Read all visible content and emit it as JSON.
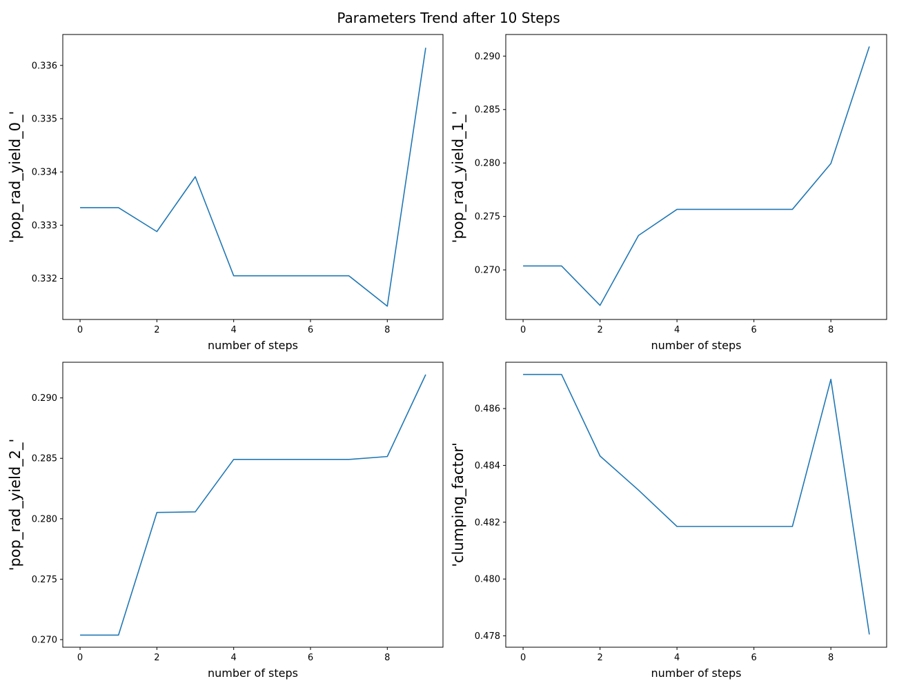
{
  "figure": {
    "title": "Parameters Trend after 10 Steps"
  },
  "chart_data": [
    {
      "type": "line",
      "title": "",
      "xlabel": "number of steps",
      "ylabel": "'pop_rad_yield_0_'",
      "x": [
        0,
        1,
        2,
        3,
        4,
        5,
        6,
        7,
        8,
        9
      ],
      "xticks": [
        0,
        2,
        4,
        6,
        8
      ],
      "xlim": [
        -0.45,
        9.45
      ],
      "yticks": [
        0.332,
        0.333,
        0.334,
        0.335,
        0.336
      ],
      "ylim": [
        0.33123,
        0.33658
      ],
      "ytick_decimals": 3,
      "series": [
        {
          "color": "#1f77b4",
          "values": [
            0.33333,
            0.33333,
            0.33288,
            0.33391,
            0.33205,
            0.33205,
            0.33205,
            0.33205,
            0.33148,
            0.33633
          ]
        }
      ]
    },
    {
      "type": "line",
      "title": "",
      "xlabel": "number of steps",
      "ylabel": "'pop_rad_yield_1_'",
      "x": [
        0,
        1,
        2,
        3,
        4,
        5,
        6,
        7,
        8,
        9
      ],
      "xticks": [
        0,
        2,
        4,
        6,
        8
      ],
      "xlim": [
        -0.45,
        9.45
      ],
      "yticks": [
        0.27,
        0.275,
        0.28,
        0.285,
        0.29
      ],
      "ylim": [
        0.26536,
        0.29202
      ],
      "ytick_decimals": 3,
      "series": [
        {
          "color": "#1f77b4",
          "values": [
            0.27037,
            0.27037,
            0.26668,
            0.27322,
            0.27566,
            0.27566,
            0.27566,
            0.27566,
            0.27995,
            0.2909
          ]
        }
      ]
    },
    {
      "type": "line",
      "title": "",
      "xlabel": "number of steps",
      "ylabel": "'pop_rad_yield_2_'",
      "x": [
        0,
        1,
        2,
        3,
        4,
        5,
        6,
        7,
        8,
        9
      ],
      "xticks": [
        0,
        2,
        4,
        6,
        8
      ],
      "xlim": [
        -0.45,
        9.45
      ],
      "yticks": [
        0.27,
        0.275,
        0.28,
        0.285,
        0.29
      ],
      "ylim": [
        0.26937,
        0.29295
      ],
      "ytick_decimals": 3,
      "series": [
        {
          "color": "#1f77b4",
          "values": [
            0.27037,
            0.27037,
            0.28052,
            0.28057,
            0.28491,
            0.28491,
            0.28491,
            0.28491,
            0.28515,
            0.29193
          ]
        }
      ]
    },
    {
      "type": "line",
      "title": "",
      "xlabel": "number of steps",
      "ylabel": "'clumping_factor'",
      "x": [
        0,
        1,
        2,
        3,
        4,
        5,
        6,
        7,
        8,
        9
      ],
      "xticks": [
        0,
        2,
        4,
        6,
        8
      ],
      "xlim": [
        -0.45,
        9.45
      ],
      "yticks": [
        0.478,
        0.48,
        0.482,
        0.484,
        0.486
      ],
      "ylim": [
        0.4776,
        0.48763
      ],
      "ytick_decimals": 3,
      "series": [
        {
          "color": "#1f77b4",
          "values": [
            0.4872,
            0.4872,
            0.48433,
            0.48313,
            0.48185,
            0.48185,
            0.48185,
            0.48185,
            0.48703,
            0.47805
          ]
        }
      ]
    }
  ]
}
